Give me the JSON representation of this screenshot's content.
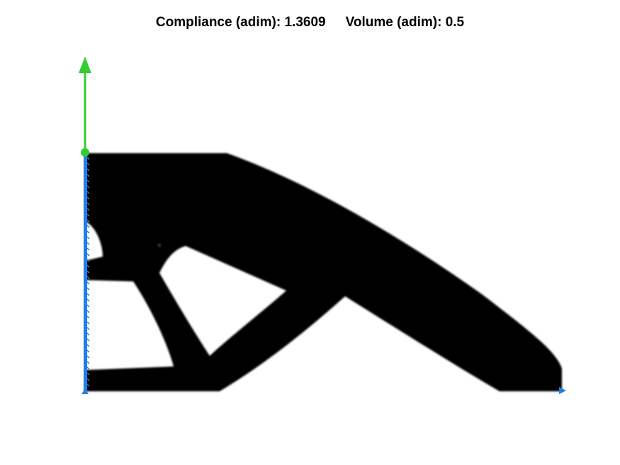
{
  "title": {
    "compliance_label": "Compliance (adim):",
    "compliance_value": "1.3609",
    "volume_label": "Volume (adim):",
    "volume_value": "0.5"
  },
  "colors": {
    "background": "#ffffff",
    "material": "#000000",
    "load_arrow": "#33cc33",
    "support": "#1f7fe6"
  },
  "icons": {
    "load": "up-arrow-icon",
    "support_left": "vertical-support-line-icon",
    "support_bottom": "right-arrow-icon"
  }
}
